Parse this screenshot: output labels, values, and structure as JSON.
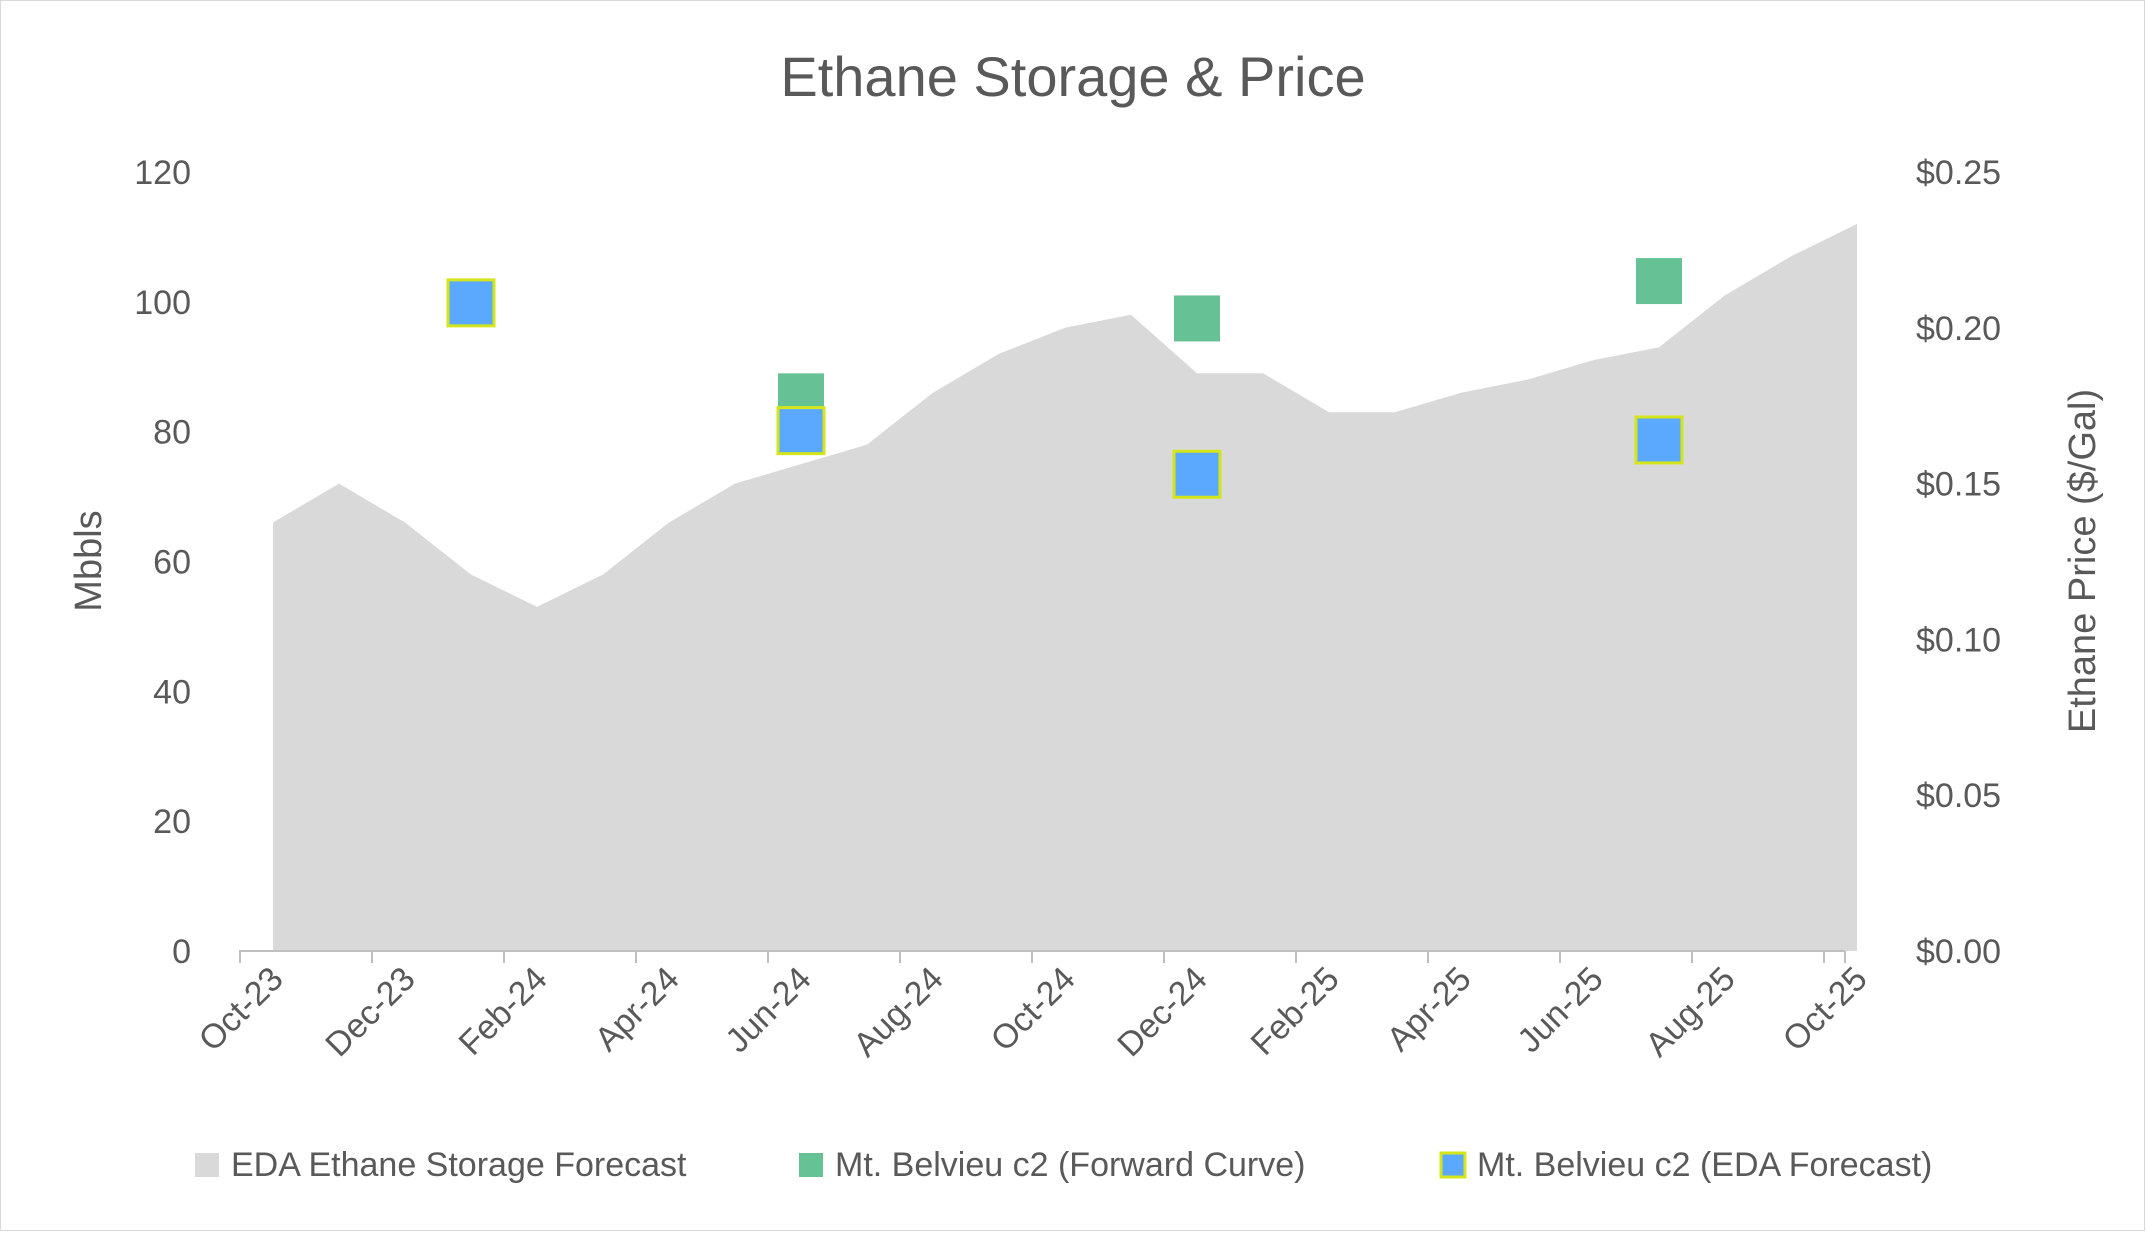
{
  "chart_data": {
    "type": "area+scatter",
    "title": "Ethane Storage & Price",
    "ylabel_left": "Mbbls",
    "ylabel_right": "Ethane Price ($/Gal)",
    "ylim_left": [
      0,
      120
    ],
    "ylim_right": [
      0,
      0.25
    ],
    "yticks_left": [
      "0",
      "20",
      "40",
      "60",
      "80",
      "100",
      "120"
    ],
    "yticks_right": [
      "$0.00",
      "$0.05",
      "$0.10",
      "$0.15",
      "$0.20",
      "$0.25"
    ],
    "x_tick_labels": [
      "Oct-23",
      "Dec-23",
      "Feb-24",
      "Apr-24",
      "Jun-24",
      "Aug-24",
      "Oct-24",
      "Dec-24",
      "Feb-25",
      "Apr-25",
      "Jun-25",
      "Aug-25",
      "Oct-25"
    ],
    "months": [
      "Oct-23",
      "Nov-23",
      "Dec-23",
      "Jan-24",
      "Feb-24",
      "Mar-24",
      "Apr-24",
      "May-24",
      "Jun-24",
      "Jul-24",
      "Aug-24",
      "Sep-24",
      "Oct-24",
      "Nov-24",
      "Dec-24",
      "Jan-25",
      "Feb-25",
      "Mar-25",
      "Apr-25",
      "May-25",
      "Jun-25",
      "Jul-25",
      "Aug-25",
      "Sep-25",
      "Oct-25"
    ],
    "series": [
      {
        "name": "EDA Ethane Storage Forecast",
        "kind": "area",
        "axis": "left",
        "color": "#d9d9d9",
        "values": [
          66,
          72,
          66,
          58,
          53,
          58,
          66,
          72,
          75,
          78,
          86,
          92,
          96,
          98,
          89,
          89,
          83,
          83,
          86,
          88,
          91,
          93,
          101,
          107,
          112
        ]
      },
      {
        "name": "Mt. Belvieu c2 (Forward Curve)",
        "kind": "scatter",
        "axis": "right",
        "color": "#66c194",
        "points": [
          {
            "month": "Jun-24",
            "value": 0.178
          },
          {
            "month": "Dec-24",
            "value": 0.203
          },
          {
            "month": "Jul-25",
            "value": 0.215
          }
        ]
      },
      {
        "name": "Mt. Belvieu c2 (EDA Forecast)",
        "kind": "scatter",
        "axis": "right",
        "color": "#5ba8ff",
        "edge_color": "#d4e61a",
        "points": [
          {
            "month": "Jan-24",
            "value": 0.208
          },
          {
            "month": "Jun-24",
            "value": 0.167
          },
          {
            "month": "Dec-24",
            "value": 0.153
          },
          {
            "month": "Jul-25",
            "value": 0.164
          }
        ]
      }
    ],
    "legend_position": "bottom"
  }
}
